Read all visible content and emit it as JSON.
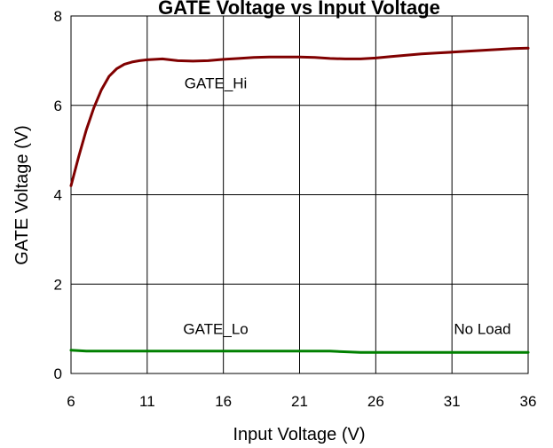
{
  "chart_data": {
    "type": "line",
    "title": "GATE Voltage vs Input Voltage",
    "xlabel": "Input Voltage (V)",
    "ylabel": "GATE Voltage (V)",
    "xlim": [
      6,
      36
    ],
    "ylim": [
      0,
      8
    ],
    "x_ticks": [
      6,
      11,
      16,
      21,
      26,
      31,
      36
    ],
    "y_ticks": [
      0,
      2,
      4,
      6,
      8
    ],
    "grid": true,
    "annotations": [
      {
        "text": "GATE_Hi",
        "x": 15.5,
        "y": 6.5
      },
      {
        "text": "GATE_Lo",
        "x": 15.5,
        "y": 1.0
      },
      {
        "text": "No Load",
        "x": 33,
        "y": 1.0
      }
    ],
    "series": [
      {
        "name": "GATE_Hi",
        "color": "#800000",
        "x": [
          6,
          6.5,
          7,
          7.5,
          8,
          8.5,
          9,
          9.5,
          10,
          10.5,
          11,
          12,
          13,
          14,
          15,
          16,
          17,
          18,
          19,
          20,
          21,
          22,
          23,
          24,
          25,
          26,
          27,
          28,
          29,
          30,
          31,
          32,
          33,
          34,
          35,
          36
        ],
        "values": [
          4.2,
          4.85,
          5.45,
          5.95,
          6.35,
          6.65,
          6.82,
          6.92,
          6.97,
          7.0,
          7.02,
          7.04,
          7.0,
          6.99,
          7.0,
          7.03,
          7.05,
          7.07,
          7.08,
          7.08,
          7.08,
          7.07,
          7.05,
          7.04,
          7.04,
          7.06,
          7.09,
          7.12,
          7.15,
          7.17,
          7.19,
          7.21,
          7.23,
          7.25,
          7.27,
          7.28
        ]
      },
      {
        "name": "GATE_Lo",
        "color": "#008000",
        "x": [
          6,
          7,
          9,
          11,
          13,
          15,
          17,
          19,
          21,
          23,
          25,
          27,
          29,
          31,
          33,
          35,
          36
        ],
        "values": [
          0.52,
          0.5,
          0.5,
          0.5,
          0.5,
          0.5,
          0.5,
          0.5,
          0.5,
          0.5,
          0.47,
          0.47,
          0.47,
          0.47,
          0.47,
          0.47,
          0.47
        ]
      }
    ]
  }
}
